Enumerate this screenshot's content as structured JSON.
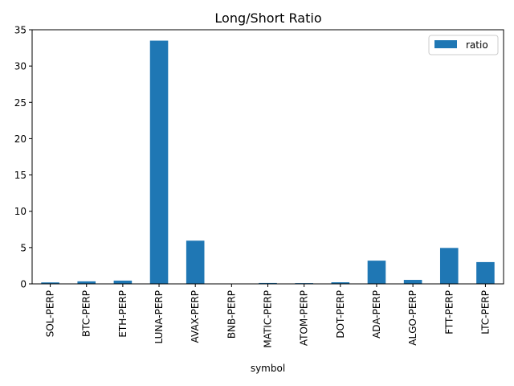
{
  "chart_data": {
    "type": "bar",
    "title": "Long/Short Ratio",
    "xlabel": "symbol",
    "ylabel": "",
    "categories": [
      "SOL-PERP",
      "BTC-PERP",
      "ETH-PERP",
      "LUNA-PERP",
      "AVAX-PERP",
      "BNB-PERP",
      "MATIC-PERP",
      "ATOM-PERP",
      "DOT-PERP",
      "ADA-PERP",
      "ALGO-PERP",
      "FTT-PERP",
      "LTC-PERP"
    ],
    "series": [
      {
        "name": "ratio",
        "color": "#1f77b4",
        "values": [
          0.2,
          0.35,
          0.45,
          33.5,
          5.95,
          0.02,
          0.12,
          0.1,
          0.22,
          3.2,
          0.55,
          4.95,
          3.0
        ]
      }
    ],
    "ylim": [
      0,
      35
    ],
    "yticks": [
      0,
      5,
      10,
      15,
      20,
      25,
      30,
      35
    ],
    "grid": false,
    "legend": "top-right"
  }
}
